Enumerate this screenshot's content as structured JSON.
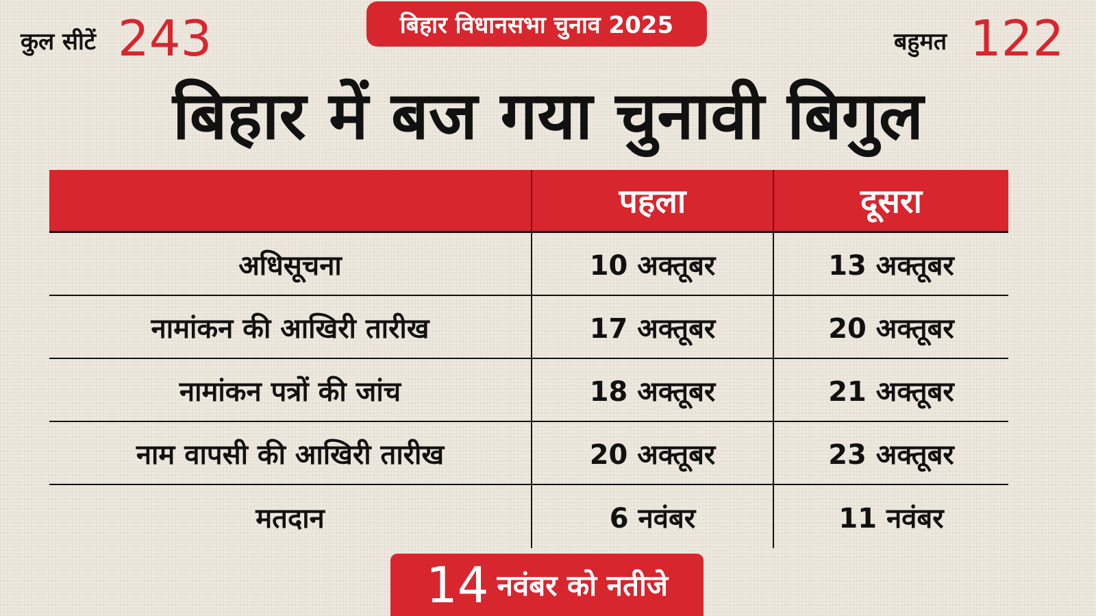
{
  "header": {
    "seats_label": "कुल सीटें",
    "seats": "243",
    "badge": "बिहार विधानसभा चुनाव 2025",
    "majority_label": "बहुमत",
    "majority": "122",
    "title": "बिहार में बज गया चुनावी बिगुल"
  },
  "table": {
    "columns": [
      "पहला",
      "दूसरा"
    ],
    "rows": [
      [
        "अधिसूचना",
        "10 अक्तूबर",
        "13 अक्तूबर"
      ],
      [
        "नामांकन की आखिरी तारीख",
        "17 अक्तूबर",
        "20 अक्तूबर"
      ],
      [
        "नामांकन पत्रों की जांच",
        "18 अक्तूबर",
        "21 अक्तूबर"
      ],
      [
        "नाम वापसी की आखिरी तारीख",
        "20 अक्तूबर",
        "23 अक्तूबर"
      ],
      [
        "मतदान",
        "6 नवंबर",
        "11 नवंबर"
      ]
    ]
  },
  "footer": {
    "day": "14",
    "text": "नवंबर को नतीजे"
  }
}
